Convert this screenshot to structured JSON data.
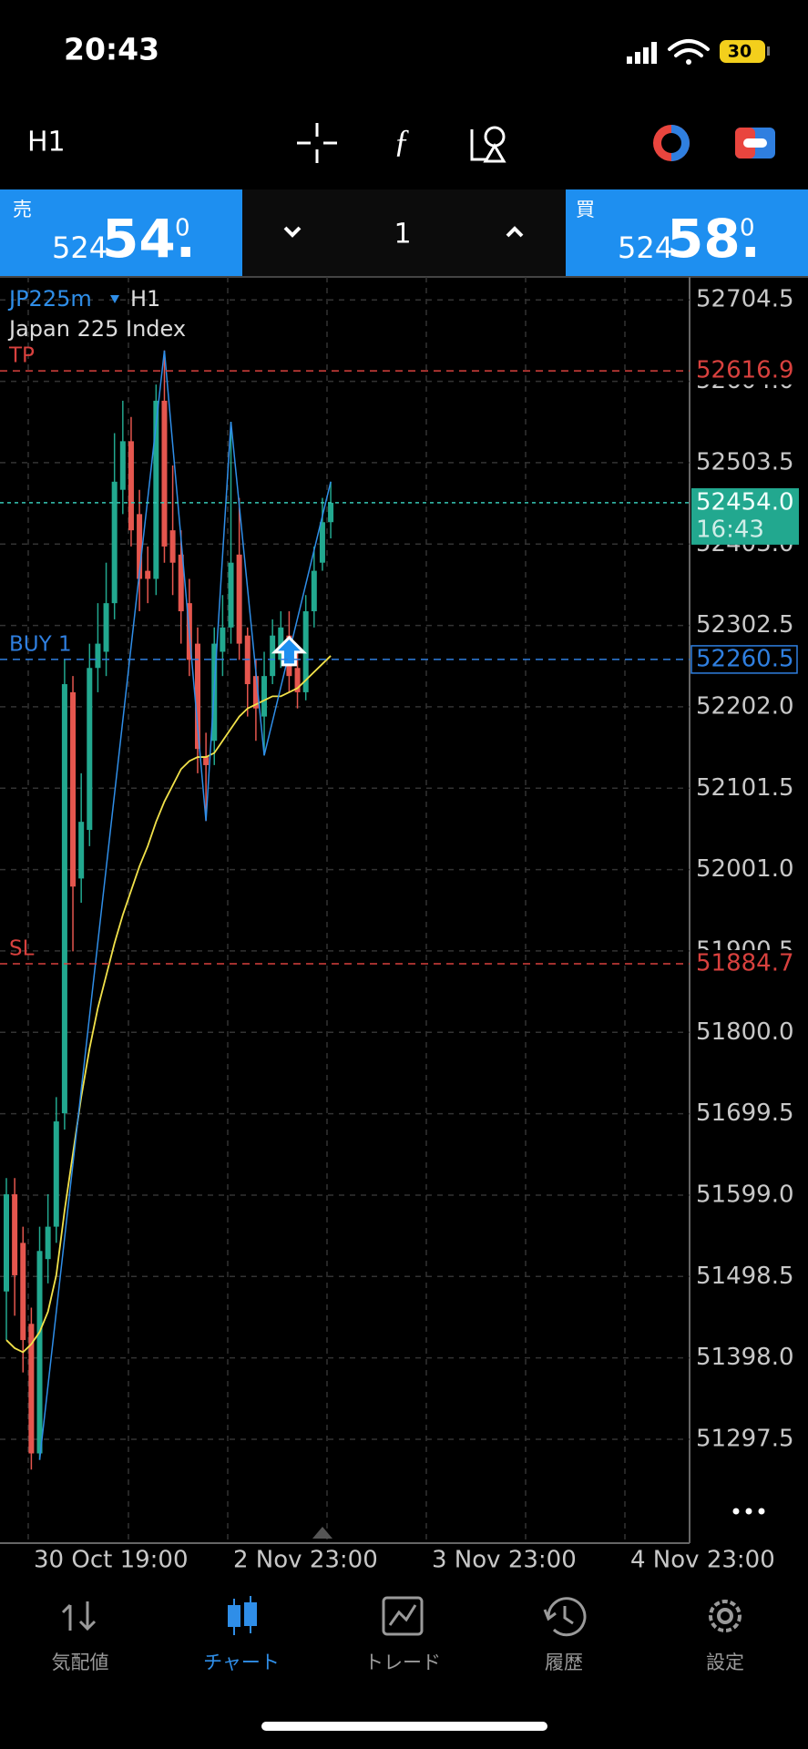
{
  "status_bar": {
    "time": "20:43",
    "battery": "30"
  },
  "toolbar": {
    "timeframe": "H1"
  },
  "trade_panel": {
    "sell": {
      "label": "売",
      "price_small": "524",
      "price_big": "54.",
      "price_sup": "0"
    },
    "volume": "1",
    "buy": {
      "label": "買",
      "price_small": "524",
      "price_big": "58.",
      "price_sup": "0"
    }
  },
  "chart_data": {
    "type": "candlestick",
    "symbol": "JP225m",
    "timeframe": "H1",
    "description": "Japan 225 Index",
    "ylim": [
      51169.2,
      52732.9
    ],
    "yticks": [
      52704.5,
      {
        "value": 52604,
        "label": "52604.0"
      },
      52503.5,
      {
        "value": 52403,
        "label": "52403.0"
      },
      52302.5,
      {
        "value": 52202,
        "label": "52202.0"
      },
      52101.5,
      {
        "value": 52001,
        "label": "52001.0"
      },
      51900.5,
      {
        "value": 51800,
        "label": "51800.0"
      },
      51699.5,
      {
        "value": 51599,
        "label": "51599.0"
      },
      51498.5,
      {
        "value": 51398,
        "label": "51398.0"
      },
      51297.5
    ],
    "x_labels": [
      "30 Oct 19:00",
      "2 Nov 23:00",
      "3 Nov 23:00",
      "4 Nov 23:00"
    ],
    "open": [
      51480,
      51600,
      51540,
      51440,
      51280,
      51520,
      51560,
      51700,
      52220,
      51990,
      52050,
      52250,
      52270,
      52330,
      52470,
      52530,
      52440,
      52370,
      52360,
      52580,
      52420,
      52390,
      52330,
      52280,
      52140,
      52160,
      52270,
      52300,
      52390,
      52290,
      52240,
      52190,
      52240,
      52260,
      52290,
      52250,
      52220,
      52320,
      52380,
      52430
    ],
    "high": [
      51620,
      51620,
      51560,
      51460,
      51560,
      51600,
      51720,
      52260,
      52240,
      52120,
      52280,
      52330,
      52380,
      52540,
      52580,
      52560,
      52470,
      52400,
      52600,
      52642,
      52500,
      52420,
      52360,
      52300,
      52170,
      52300,
      52340,
      52554,
      52460,
      52300,
      52260,
      52270,
      52310,
      52320,
      52320,
      52270,
      52340,
      52400,
      52460,
      52480
    ],
    "low": [
      51420,
      51450,
      51380,
      51260,
      51272,
      51490,
      51540,
      51680,
      51900,
      51960,
      52030,
      52220,
      52240,
      52310,
      52440,
      52400,
      52320,
      52330,
      52340,
      52380,
      52340,
      52280,
      52240,
      52120,
      52061,
      52130,
      52240,
      52280,
      52260,
      52190,
      52160,
      52142,
      52230,
      52250,
      52220,
      52200,
      52210,
      52300,
      52370,
      52410
    ],
    "close": [
      51600,
      51500,
      51420,
      51280,
      51530,
      51560,
      51690,
      52230,
      51980,
      52060,
      52250,
      52280,
      52330,
      52480,
      52530,
      52420,
      52360,
      52360,
      52580,
      52400,
      52380,
      52320,
      52260,
      52150,
      52130,
      52280,
      52300,
      52380,
      52280,
      52230,
      52200,
      52240,
      52290,
      52300,
      52240,
      52220,
      52320,
      52370,
      52430,
      52454
    ],
    "colors": {
      "up": "#22a88f",
      "down": "#e5564e"
    },
    "moving_average": {
      "color": "#f2e24a",
      "values": [
        51420,
        51410,
        51405,
        51415,
        51430,
        51455,
        51500,
        51580,
        51650,
        51720,
        51780,
        51830,
        51870,
        51910,
        51945,
        51975,
        52005,
        52030,
        52060,
        52085,
        52105,
        52125,
        52135,
        52140,
        52140,
        52145,
        52160,
        52175,
        52190,
        52200,
        52205,
        52210,
        52215,
        52215,
        52220,
        52225,
        52235,
        52245,
        52255,
        52265
      ]
    },
    "zigzag": {
      "color": "#2f8ee8",
      "x": [
        4,
        19,
        24,
        27,
        31,
        39
      ],
      "values": [
        51272,
        52642,
        52061,
        52554,
        52142,
        52480
      ]
    },
    "levels": [
      {
        "name": "TP",
        "value": 52616.9,
        "color": "#d8413e"
      },
      {
        "name": "BUY 1",
        "value": 52260.5,
        "color": "#2f7fe0"
      },
      {
        "name": "SL",
        "value": 51884.7,
        "color": "#d8413e"
      }
    ],
    "current_price": {
      "value": 52454,
      "label": "52454.0",
      "countdown": "16:43",
      "color": "#22a88f"
    }
  },
  "tabs": [
    {
      "label": "気配値"
    },
    {
      "label": "チャート"
    },
    {
      "label": "トレード"
    },
    {
      "label": "履歴"
    },
    {
      "label": "設定"
    }
  ]
}
